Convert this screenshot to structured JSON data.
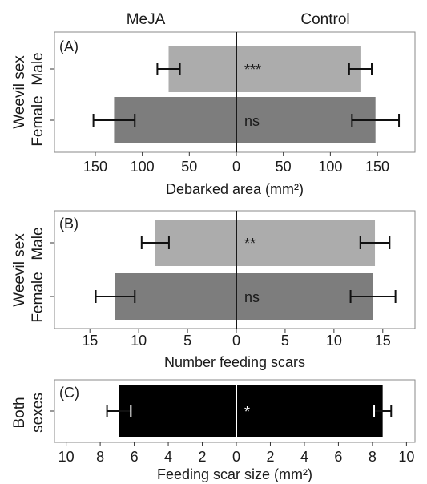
{
  "figure": {
    "left_header": "MeJA",
    "right_header": "Control"
  },
  "colors": {
    "male_bar": "#acacac",
    "female_bar": "#7d7d7d",
    "both_bar": "#000000",
    "axis": "#1a1a1a",
    "frame": "#8a8a8a"
  },
  "chart_data": [
    {
      "type": "bar",
      "orientation": "horizontal-back-to-back",
      "panel_label": "(A)",
      "ylabel": "Weevil sex",
      "xlabel": "Debarked area (mm²)",
      "xlim": [
        -190,
        190
      ],
      "xticks": [
        -150,
        -100,
        -50,
        0,
        50,
        100,
        150
      ],
      "xtick_labels": [
        "150",
        "100",
        "50",
        "0",
        "50",
        "100",
        "150"
      ],
      "categories": [
        "Male",
        "Female"
      ],
      "series": [
        {
          "name": "MeJA",
          "values": [
            72,
            130
          ],
          "errors": [
            12,
            22
          ]
        },
        {
          "name": "Control",
          "values": [
            132,
            148
          ],
          "errors": [
            12,
            25
          ]
        }
      ],
      "significance": [
        "***",
        "ns"
      ]
    },
    {
      "type": "bar",
      "orientation": "horizontal-back-to-back",
      "panel_label": "(B)",
      "ylabel": "Weevil sex",
      "xlabel": "Number feeding scars",
      "xlim": [
        -18.3,
        18.3
      ],
      "xticks": [
        -15,
        -10,
        -5,
        0,
        5,
        10,
        15
      ],
      "xtick_labels": [
        "15",
        "10",
        "5",
        "0",
        "5",
        "10",
        "15"
      ],
      "categories": [
        "Male",
        "Female"
      ],
      "series": [
        {
          "name": "MeJA",
          "values": [
            8.3,
            12.4
          ],
          "errors": [
            1.4,
            2.0
          ]
        },
        {
          "name": "Control",
          "values": [
            14.2,
            14.0
          ],
          "errors": [
            1.5,
            2.3
          ]
        }
      ],
      "significance": [
        "**",
        "ns"
      ]
    },
    {
      "type": "bar",
      "orientation": "horizontal-back-to-back",
      "panel_label": "(C)",
      "ylabel": "Both sexes",
      "xlabel": "Feeding scar size (mm²)",
      "xlim": [
        -10.5,
        10.5
      ],
      "xticks": [
        -10,
        -8,
        -6,
        -4,
        -2,
        0,
        2,
        4,
        6,
        8,
        10
      ],
      "xtick_labels": [
        "10",
        "8",
        "6",
        "4",
        "2",
        "0",
        "2",
        "4",
        "6",
        "8",
        "10"
      ],
      "categories": [
        "Both sexes"
      ],
      "series": [
        {
          "name": "MeJA",
          "values": [
            6.9
          ],
          "errors": [
            0.7
          ]
        },
        {
          "name": "Control",
          "values": [
            8.6
          ],
          "errors": [
            0.5
          ]
        }
      ],
      "significance": [
        "*"
      ]
    }
  ]
}
